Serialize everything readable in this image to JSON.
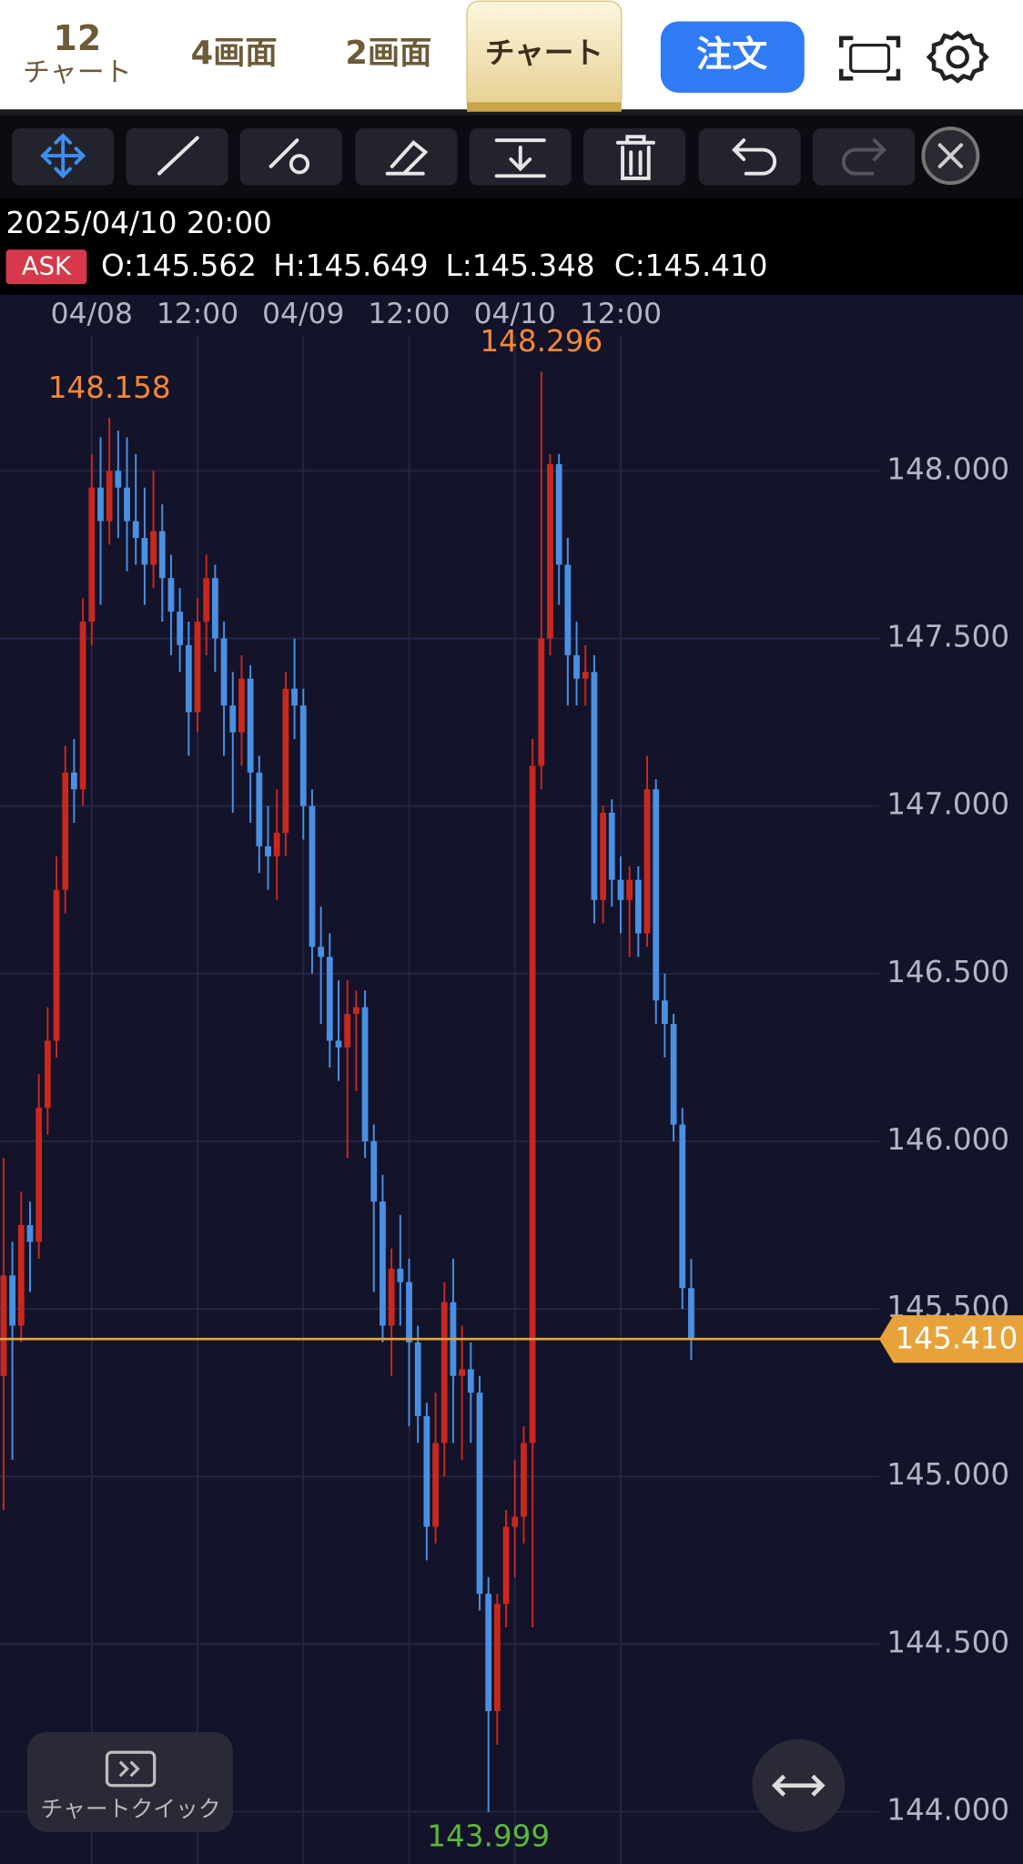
{
  "nav": {
    "interval": "12",
    "interval_label": "チャート",
    "tabs": [
      "4画面",
      "2画面",
      "チャート"
    ],
    "order_button": "注文"
  },
  "info": {
    "datetime": "2025/04/10 20:00",
    "side": "ASK",
    "ohlc": [
      "O:145.562",
      "H:145.649",
      "L:145.348",
      "C:145.410"
    ]
  },
  "quick_button": "チャートクイック",
  "chart_data": {
    "type": "candlestick",
    "x": [
      "04/07 14:00",
      "04/07 15:00",
      "04/07 16:00",
      "04/07 17:00",
      "04/07 18:00",
      "04/07 19:00",
      "04/07 20:00",
      "04/07 21:00",
      "04/07 22:00",
      "04/07 23:00",
      "04/08 00:00",
      "04/08 01:00",
      "04/08 02:00",
      "04/08 03:00",
      "04/08 04:00",
      "04/08 05:00",
      "04/08 06:00",
      "04/08 07:00",
      "04/08 08:00",
      "04/08 09:00",
      "04/08 10:00",
      "04/08 11:00",
      "04/08 12:00",
      "04/08 13:00",
      "04/08 14:00",
      "04/08 15:00",
      "04/08 16:00",
      "04/08 17:00",
      "04/08 18:00",
      "04/08 19:00",
      "04/08 20:00",
      "04/08 21:00",
      "04/08 22:00",
      "04/08 23:00",
      "04/09 00:00",
      "04/09 01:00",
      "04/09 02:00",
      "04/09 03:00",
      "04/09 04:00",
      "04/09 05:00",
      "04/09 06:00",
      "04/09 07:00",
      "04/09 08:00",
      "04/09 09:00",
      "04/09 10:00",
      "04/09 11:00",
      "04/09 12:00",
      "04/09 13:00",
      "04/09 14:00",
      "04/09 15:00",
      "04/09 16:00",
      "04/09 17:00",
      "04/09 18:00",
      "04/09 19:00",
      "04/09 20:00",
      "04/09 21:00",
      "04/09 22:00",
      "04/09 23:00",
      "04/10 00:00",
      "04/10 01:00",
      "04/10 02:00",
      "04/10 03:00",
      "04/10 04:00",
      "04/10 05:00",
      "04/10 06:00",
      "04/10 07:00",
      "04/10 08:00",
      "04/10 09:00",
      "04/10 10:00",
      "04/10 11:00",
      "04/10 12:00",
      "04/10 13:00",
      "04/10 14:00",
      "04/10 15:00",
      "04/10 16:00",
      "04/10 17:00",
      "04/10 18:00",
      "04/10 19:00",
      "04/10 20:00"
    ],
    "open": [
      145.3,
      145.6,
      145.45,
      145.75,
      145.7,
      146.1,
      146.3,
      146.75,
      147.1,
      147.05,
      147.55,
      147.95,
      147.85,
      148.0,
      147.95,
      147.85,
      147.8,
      147.72,
      147.82,
      147.68,
      147.58,
      147.48,
      147.28,
      147.55,
      147.68,
      147.5,
      147.3,
      147.22,
      147.38,
      147.1,
      146.88,
      146.85,
      146.92,
      147.35,
      147.3,
      147.0,
      146.58,
      146.55,
      146.3,
      146.28,
      146.38,
      146.4,
      146.0,
      145.82,
      145.45,
      145.62,
      145.58,
      145.4,
      145.18,
      144.85,
      145.1,
      145.52,
      145.3,
      145.32,
      145.25,
      144.65,
      144.3,
      144.62,
      144.85,
      144.88,
      145.1,
      147.12,
      147.5,
      148.02,
      147.72,
      147.45,
      147.38,
      147.4,
      146.72,
      146.98,
      146.78,
      146.72,
      146.78,
      146.62,
      147.05,
      146.42,
      146.35,
      146.05,
      145.562
    ],
    "high": [
      145.95,
      145.7,
      145.85,
      145.82,
      146.2,
      146.4,
      146.85,
      147.18,
      147.2,
      147.62,
      148.05,
      148.1,
      148.158,
      148.12,
      148.1,
      148.05,
      147.95,
      148.0,
      147.9,
      147.75,
      147.65,
      147.55,
      147.62,
      147.75,
      147.72,
      147.55,
      147.4,
      147.45,
      147.42,
      147.15,
      147.0,
      147.05,
      147.4,
      147.5,
      147.35,
      147.05,
      146.7,
      146.62,
      146.48,
      146.48,
      146.45,
      146.45,
      146.05,
      145.9,
      145.68,
      145.78,
      145.65,
      145.45,
      145.22,
      145.25,
      145.58,
      145.65,
      145.45,
      145.4,
      145.3,
      144.7,
      144.65,
      144.9,
      145.05,
      145.15,
      147.2,
      148.296,
      148.05,
      148.05,
      147.8,
      147.55,
      147.48,
      147.45,
      147.0,
      147.02,
      146.85,
      146.82,
      146.82,
      147.15,
      147.08,
      146.5,
      146.38,
      146.1,
      145.649
    ],
    "low": [
      144.9,
      145.05,
      145.4,
      145.55,
      145.65,
      146.02,
      146.25,
      146.68,
      146.95,
      147.0,
      147.48,
      147.6,
      147.78,
      147.8,
      147.7,
      147.72,
      147.6,
      147.65,
      147.55,
      147.45,
      147.4,
      147.15,
      147.22,
      147.45,
      147.4,
      147.15,
      146.98,
      147.12,
      146.95,
      146.8,
      146.75,
      146.72,
      146.85,
      147.2,
      146.9,
      146.5,
      146.35,
      146.22,
      146.18,
      145.95,
      146.15,
      145.95,
      145.55,
      145.4,
      145.3,
      145.45,
      145.15,
      145.1,
      144.75,
      144.8,
      145.0,
      145.1,
      145.05,
      145.1,
      144.6,
      143.999,
      144.2,
      144.55,
      144.7,
      144.8,
      144.55,
      147.05,
      147.45,
      147.6,
      147.3,
      147.3,
      147.3,
      146.65,
      146.65,
      146.7,
      146.62,
      146.55,
      146.55,
      146.58,
      146.35,
      146.25,
      146.0,
      145.5,
      145.348
    ],
    "close": [
      145.6,
      145.45,
      145.75,
      145.7,
      146.1,
      146.3,
      146.75,
      147.1,
      147.05,
      147.55,
      147.95,
      147.85,
      148.0,
      147.95,
      147.85,
      147.8,
      147.72,
      147.82,
      147.68,
      147.58,
      147.48,
      147.28,
      147.55,
      147.68,
      147.5,
      147.3,
      147.22,
      147.38,
      147.1,
      146.88,
      146.85,
      146.92,
      147.35,
      147.3,
      147.0,
      146.58,
      146.55,
      146.3,
      146.28,
      146.38,
      146.4,
      146.0,
      145.82,
      145.45,
      145.62,
      145.58,
      145.4,
      145.18,
      144.85,
      145.1,
      145.52,
      145.3,
      145.32,
      145.25,
      144.65,
      144.3,
      144.62,
      144.85,
      144.88,
      145.1,
      147.12,
      147.5,
      148.02,
      147.72,
      147.45,
      147.38,
      147.4,
      146.72,
      146.98,
      146.78,
      146.72,
      146.78,
      146.62,
      147.05,
      146.42,
      146.35,
      146.05,
      145.562,
      145.41
    ],
    "up_color": "#c9281f",
    "down_color": "#4a90e2",
    "high_color": "#f0883a",
    "low_color": "#5cb83a",
    "ylim": [
      143.844,
      148.518
    ],
    "yticks": [
      {
        "value": 144,
        "label": "144.000"
      },
      {
        "value": 144.5,
        "label": "144.500"
      },
      {
        "value": 145,
        "label": "145.000"
      },
      {
        "value": 145.5,
        "label": "145.500"
      },
      {
        "value": 146,
        "label": "146.000"
      },
      {
        "value": 146.5,
        "label": "146.500"
      },
      {
        "value": 147,
        "label": "147.000"
      },
      {
        "value": 147.5,
        "label": "147.500"
      },
      {
        "value": 148,
        "label": "148.000"
      }
    ],
    "xticks": [
      {
        "value": "04/08 00:00",
        "label": "04/08"
      },
      {
        "value": "04/08 12:00",
        "label": "12:00"
      },
      {
        "value": "04/09 00:00",
        "label": "04/09"
      },
      {
        "value": "04/09 12:00",
        "label": "12:00"
      },
      {
        "value": "04/10 00:00",
        "label": "04/10"
      },
      {
        "value": "04/10 12:00",
        "label": "12:00"
      }
    ],
    "grid": true,
    "price_line": {
      "value": 145.41,
      "label": "145.410",
      "color": "#e8a23a"
    }
  }
}
